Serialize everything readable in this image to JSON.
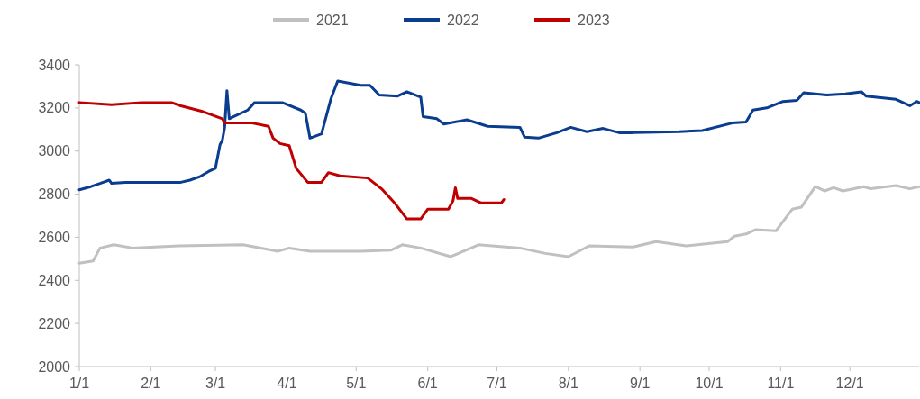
{
  "chart_data": {
    "type": "line",
    "xlim": [
      "--01-01",
      "--12-31"
    ],
    "xticks": [
      {
        "value": "--01-01",
        "label": "1/1"
      },
      {
        "value": "--02-01",
        "label": "2/1"
      },
      {
        "value": "--03-01",
        "label": "3/1"
      },
      {
        "value": "--04-01",
        "label": "4/1"
      },
      {
        "value": "--05-01",
        "label": "5/1"
      },
      {
        "value": "--06-01",
        "label": "6/1"
      },
      {
        "value": "--07-01",
        "label": "7/1"
      },
      {
        "value": "--08-01",
        "label": "8/1"
      },
      {
        "value": "--09-01",
        "label": "9/1"
      },
      {
        "value": "--10-01",
        "label": "10/1"
      },
      {
        "value": "--11-01",
        "label": "11/1"
      },
      {
        "value": "--12-01",
        "label": "12/1"
      }
    ],
    "ylim": [
      2000,
      3400
    ],
    "yticks": [
      2000,
      2200,
      2400,
      2600,
      2800,
      3000,
      3200,
      3400
    ],
    "grid": false,
    "legend": "top",
    "marker": "none",
    "line_style": "solid",
    "series": [
      {
        "name": "2021",
        "color": "#c0c0c0",
        "x": [
          "--01-01",
          "--01-07",
          "--01-10",
          "--01-16",
          "--01-24",
          "--02-13",
          "--03-13",
          "--03-28",
          "--04-02",
          "--04-11",
          "--05-03",
          "--05-16",
          "--05-21",
          "--05-29",
          "--06-11",
          "--06-23",
          "--07-11",
          "--07-22",
          "--08-01",
          "--08-10",
          "--08-29",
          "--09-08",
          "--09-21",
          "--10-09",
          "--10-12",
          "--10-17",
          "--10-21",
          "--10-30",
          "--11-06",
          "--11-10",
          "--11-16",
          "--11-20",
          "--11-24",
          "--11-28",
          "--12-07",
          "--12-10",
          "--12-21",
          "--12-27",
          "--12-31"
        ],
        "values": [
          2480,
          2490,
          2550,
          2565,
          2550,
          2560,
          2565,
          2535,
          2550,
          2535,
          2535,
          2540,
          2565,
          2550,
          2510,
          2565,
          2550,
          2525,
          2510,
          2560,
          2555,
          2580,
          2560,
          2580,
          2605,
          2615,
          2635,
          2630,
          2730,
          2740,
          2835,
          2815,
          2830,
          2815,
          2835,
          2825,
          2840,
          2825,
          2835
        ]
      },
      {
        "name": "2022",
        "color": "#0a3d8f",
        "x": [
          "--01-01",
          "--01-06",
          "--01-10",
          "--01-14",
          "--01-15",
          "--01-21",
          "--02-14",
          "--02-18",
          "--02-22",
          "--02-26",
          "--03-01",
          "--03-03",
          "--03-04",
          "--03-05",
          "--03-06",
          "--03-07",
          "--03-09",
          "--03-15",
          "--03-18",
          "--03-30",
          "--04-07",
          "--04-09",
          "--04-11",
          "--04-16",
          "--04-20",
          "--04-23",
          "--05-03",
          "--05-07",
          "--05-11",
          "--05-19",
          "--05-23",
          "--05-29",
          "--05-30",
          "--06-05",
          "--06-08",
          "--06-18",
          "--06-27",
          "--07-11",
          "--07-13",
          "--07-19",
          "--07-27",
          "--08-02",
          "--08-09",
          "--08-16",
          "--08-23",
          "--08-29",
          "--09-18",
          "--09-28",
          "--10-11",
          "--10-17",
          "--10-20",
          "--10-26",
          "--11-02",
          "--11-08",
          "--11-11",
          "--11-21",
          "--11-29",
          "--12-06",
          "--12-08",
          "--12-21",
          "--12-27",
          "--12-30",
          "--12-31"
        ],
        "values": [
          2820,
          2835,
          2850,
          2865,
          2850,
          2855,
          2855,
          2865,
          2880,
          2905,
          2920,
          3030,
          3050,
          3110,
          3280,
          3150,
          3160,
          3190,
          3225,
          3225,
          3190,
          3175,
          3060,
          3080,
          3240,
          3325,
          3305,
          3305,
          3260,
          3255,
          3275,
          3250,
          3160,
          3150,
          3125,
          3145,
          3115,
          3110,
          3065,
          3060,
          3085,
          3110,
          3090,
          3105,
          3085,
          3085,
          3090,
          3095,
          3130,
          3135,
          3190,
          3200,
          3230,
          3235,
          3270,
          3260,
          3265,
          3275,
          3255,
          3240,
          3210,
          3230,
          3225
        ]
      },
      {
        "name": "2023",
        "color": "#c00000",
        "x": [
          "--01-01",
          "--01-15",
          "--01-28",
          "--02-10",
          "--02-14",
          "--02-23",
          "--03-04",
          "--03-05",
          "--03-17",
          "--03-24",
          "--03-26",
          "--03-29",
          "--04-02",
          "--04-05",
          "--04-10",
          "--04-16",
          "--04-19",
          "--04-24",
          "--05-06",
          "--05-12",
          "--05-18",
          "--05-23",
          "--05-29",
          "--06-01",
          "--06-10",
          "--06-12",
          "--06-13",
          "--06-14",
          "--06-20",
          "--06-24",
          "--07-03",
          "--07-04"
        ],
        "values": [
          3225,
          3215,
          3225,
          3225,
          3210,
          3185,
          3150,
          3130,
          3130,
          3115,
          3060,
          3035,
          3025,
          2920,
          2855,
          2855,
          2900,
          2885,
          2875,
          2825,
          2755,
          2685,
          2685,
          2730,
          2730,
          2770,
          2830,
          2780,
          2780,
          2760,
          2760,
          2775
        ]
      }
    ]
  }
}
